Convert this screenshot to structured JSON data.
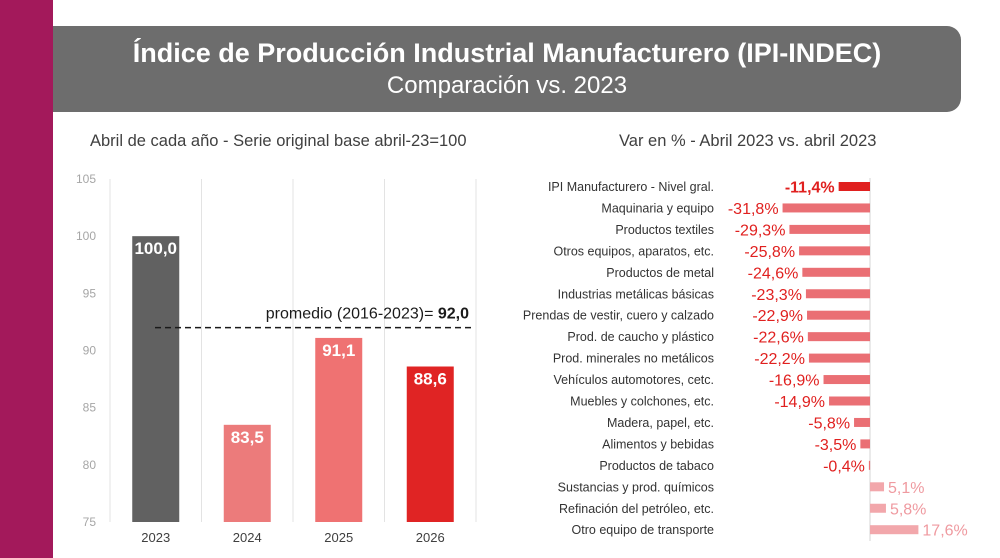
{
  "header": {
    "title": "Índice de Producción Industrial Manufacturero (IPI-INDEC)",
    "subtitle": "Comparación vs. 2023"
  },
  "colors": {
    "sidebar": "#a3195b",
    "banner": "#6d6d6d",
    "bar_2023": "#616161",
    "bar_2024": "#ec7b7b",
    "bar_2025": "#ef7272",
    "bar_2026": "#e02424",
    "neg_bar": "#ea6f74",
    "pos_bar": "#f2a7ab",
    "highlight": "#e0201f",
    "pos_label": "#ef9aa0"
  },
  "chart_data": [
    {
      "type": "bar",
      "title": "Abril de cada año - Serie original base abril-23=100",
      "categories": [
        "2023",
        "2024",
        "2025",
        "2026"
      ],
      "values": [
        100.0,
        83.5,
        91.1,
        88.6
      ],
      "value_labels": [
        "100,0",
        "83,5",
        "91,1",
        "88,6"
      ],
      "ylim": [
        75,
        105
      ],
      "yticks": [
        75,
        80,
        85,
        90,
        95,
        100,
        105
      ],
      "grid": "vertical",
      "reference_line": {
        "value": 92.0,
        "label": "promedio (2016-2023)=",
        "value_label": "92,0"
      }
    },
    {
      "type": "bar",
      "orientation": "horizontal",
      "title": "Var en % - Abril 2023 vs. abril 2023",
      "categories": [
        "IPI Manufacturero - Nivel gral.",
        "Maquinaria y equipo",
        "Productos textiles",
        "Otros equipos, aparatos, etc.",
        "Productos de metal",
        "Industrias metálicas básicas",
        "Prendas de vestir, cuero y calzado",
        "Prod. de caucho y plástico",
        "Prod. minerales no metálicos",
        "Vehículos automotores, cetc.",
        "Muebles y colchones, etc.",
        "Madera, papel, etc.",
        "Alimentos y bebidas",
        "Productos de tabaco",
        "Sustancias y prod. químicos",
        "Refinación del petróleo, etc.",
        "Otro equipo de transporte"
      ],
      "values": [
        -11.4,
        -31.8,
        -29.3,
        -25.8,
        -24.6,
        -23.3,
        -22.9,
        -22.6,
        -22.2,
        -16.9,
        -14.9,
        -5.8,
        -3.5,
        -0.4,
        5.1,
        5.8,
        17.6
      ],
      "value_labels": [
        "-11,4%",
        "-31,8%",
        "-29,3%",
        "-25,8%",
        "-24,6%",
        "-23,3%",
        "-22,9%",
        "-22,6%",
        "-22,2%",
        "-16,9%",
        "-14,9%",
        "-5,8%",
        "-3,5%",
        "-0,4%",
        "5,1%",
        "5,8%",
        "17,6%"
      ],
      "highlight_index": 0
    }
  ]
}
